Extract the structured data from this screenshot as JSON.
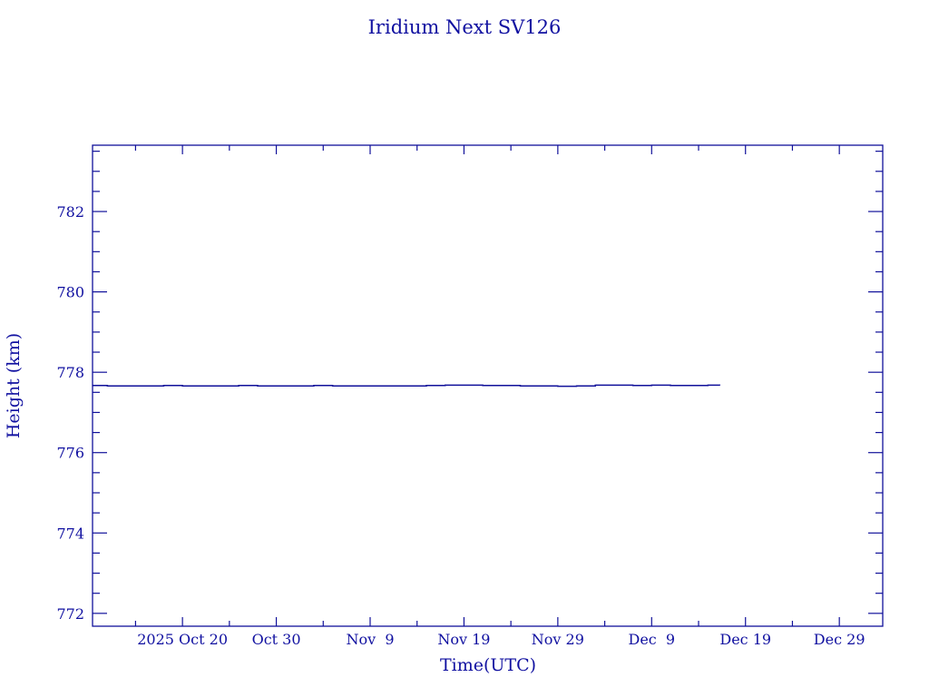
{
  "chart_data": {
    "type": "line",
    "title": "Iridium Next SV126",
    "xlabel": "Time(UTC)",
    "ylabel": "Height (km)",
    "xlim": [
      "2025-10-10T10:00",
      "2026-01-02T15:00"
    ],
    "ylim": [
      771.68,
      783.65
    ],
    "x_ticks": [
      {
        "date": "2025-10-20",
        "label": "2025 Oct 20"
      },
      {
        "date": "2025-10-30",
        "label": "Oct 30"
      },
      {
        "date": "2025-11-09",
        "label": "Nov  9"
      },
      {
        "date": "2025-11-19",
        "label": "Nov 19"
      },
      {
        "date": "2025-11-29",
        "label": "Nov 29"
      },
      {
        "date": "2025-12-09",
        "label": "Dec  9"
      },
      {
        "date": "2025-12-19",
        "label": "Dec 19"
      },
      {
        "date": "2025-12-29",
        "label": "Dec 29"
      }
    ],
    "y_ticks": [
      772,
      774,
      776,
      778,
      780,
      782
    ],
    "grid": false,
    "color": "#10109a",
    "series": [
      {
        "x": [
          "2025-10-10T10:00",
          "2025-10-12",
          "2025-10-14",
          "2025-10-16",
          "2025-10-18",
          "2025-10-20",
          "2025-10-22",
          "2025-10-24",
          "2025-10-26",
          "2025-10-28",
          "2025-10-30",
          "2025-11-01",
          "2025-11-03",
          "2025-11-05",
          "2025-11-07",
          "2025-11-09",
          "2025-11-11",
          "2025-11-13",
          "2025-11-15",
          "2025-11-17",
          "2025-11-19",
          "2025-11-21",
          "2025-11-23",
          "2025-11-25",
          "2025-11-27",
          "2025-11-29",
          "2025-12-01",
          "2025-12-03",
          "2025-12-05",
          "2025-12-07",
          "2025-12-09",
          "2025-12-11",
          "2025-12-13",
          "2025-12-15",
          "2025-12-16T06:00"
        ],
        "y": [
          777.67,
          777.66,
          777.66,
          777.66,
          777.67,
          777.66,
          777.66,
          777.66,
          777.67,
          777.66,
          777.66,
          777.66,
          777.67,
          777.66,
          777.66,
          777.66,
          777.66,
          777.66,
          777.67,
          777.68,
          777.68,
          777.67,
          777.67,
          777.66,
          777.66,
          777.65,
          777.66,
          777.68,
          777.68,
          777.67,
          777.68,
          777.67,
          777.67,
          777.68,
          777.67
        ]
      }
    ]
  }
}
